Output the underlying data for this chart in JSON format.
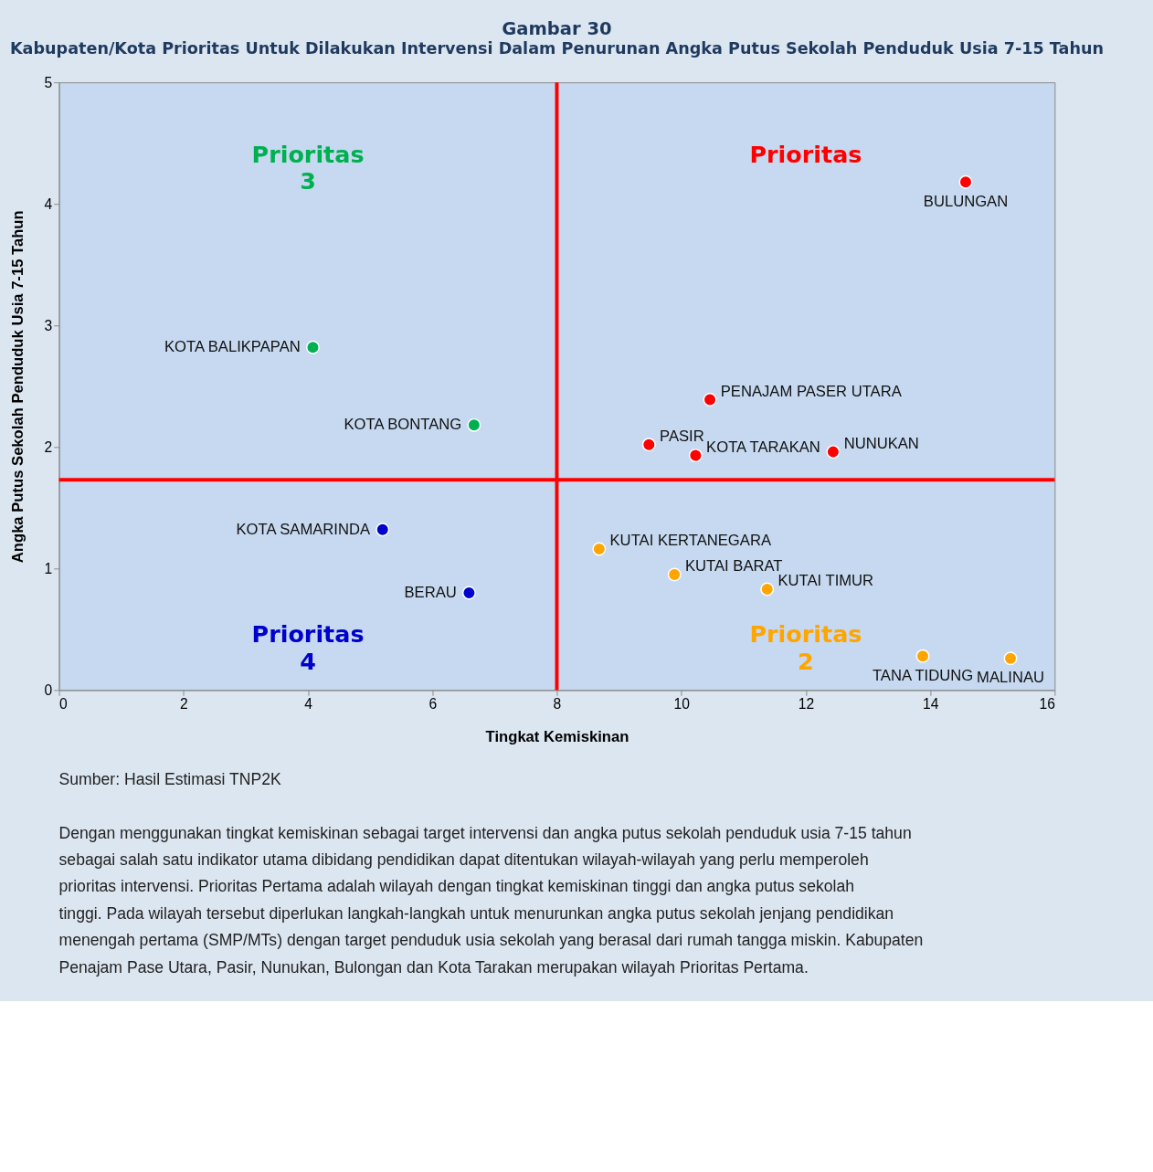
{
  "chart_data": {
    "type": "scatter",
    "title": "Gambar 30",
    "subtitle": "Kabupaten/Kota Prioritas Untuk Dilakukan Intervensi Dalam Penurunan Angka Putus Sekolah Penduduk Usia 7-15 Tahun",
    "xlabel": "Tingkat Kemiskinan",
    "ylabel": "Angka Putus Sekolah Penduduk Usia 7-15 Tahun",
    "xlim": [
      0,
      16
    ],
    "xticks": [
      0,
      2,
      4,
      6,
      8,
      10,
      12,
      14,
      16
    ],
    "ylim": [
      0,
      5
    ],
    "yticks": [
      0,
      1,
      2,
      3,
      4,
      5
    ],
    "grid": false,
    "legend": false,
    "marker": "circle",
    "series": [
      {
        "name": "Prioritas",
        "color": "#ff0000",
        "x": [
          14.57,
          10.46,
          9.48,
          10.23,
          12.44
        ],
        "values": [
          4.18,
          2.39,
          2.02,
          1.93,
          1.96
        ]
      },
      {
        "name": "Prioritas 2",
        "color": "#ffa500",
        "x": [
          8.68,
          9.89,
          11.38,
          13.88,
          15.29
        ],
        "values": [
          1.16,
          0.95,
          0.83,
          0.28,
          0.26
        ]
      },
      {
        "name": "Prioritas 3",
        "color": "#00b050",
        "x": [
          4.08,
          6.67
        ],
        "values": [
          2.82,
          2.18
        ]
      },
      {
        "name": "Prioritas 4",
        "color": "#0000cc",
        "x": [
          5.2,
          6.59
        ],
        "values": [
          1.32,
          0.8
        ]
      }
    ],
    "ref_lines": [
      {
        "axis": "x",
        "value": 8,
        "color": "#ff0000"
      },
      {
        "axis": "y",
        "value": 1.73,
        "color": "#ff0000"
      }
    ],
    "annotations": [
      {
        "text": "BULUNGAN",
        "x": 14.57,
        "y": 4.18
      },
      {
        "text": "PENAJAM PASER UTARA",
        "x": 10.46,
        "y": 2.39
      },
      {
        "text": "PASIR",
        "x": 9.48,
        "y": 2.02
      },
      {
        "text": "KOTA TARAKAN",
        "x": 10.23,
        "y": 1.93
      },
      {
        "text": "NUNUKAN",
        "x": 12.44,
        "y": 1.96
      },
      {
        "text": "KUTAI KERTANEGARA",
        "x": 8.68,
        "y": 1.16
      },
      {
        "text": "KUTAI BARAT",
        "x": 9.89,
        "y": 0.95
      },
      {
        "text": "KUTAI TIMUR",
        "x": 11.38,
        "y": 0.83
      },
      {
        "text": "TANA TIDUNG",
        "x": 13.88,
        "y": 0.28
      },
      {
        "text": "MALINAU",
        "x": 15.29,
        "y": 0.26
      },
      {
        "text": "KOTA BALIKPAPAN",
        "x": 4.08,
        "y": 2.82
      },
      {
        "text": "KOTA BONTANG",
        "x": 6.67,
        "y": 2.18
      },
      {
        "text": "KOTA SAMARINDA",
        "x": 5.2,
        "y": 1.32
      },
      {
        "text": "BERAU",
        "x": 6.59,
        "y": 0.8
      },
      "Sumber: Hasil Estimasi TNP2K",
      "Dengan menggunakan tingkat kemiskinan sebagai target intervensi dan angka putus sekolah penduduk usia 7-15 tahun sebagai salah satu indikator utama dibidang pendidikan dapat ditentukan wilayah-wilayah yang perlu memperoleh prioritas intervensi. Prioritas Pertama adalah wilayah dengan tingkat kemiskinan tinggi dan angka putus sekolah tinggi. Pada wilayah tersebut diperlukan langkah-langkah untuk menurunkan angka putus sekolah jenjang pendidikan menengah pertama (SMP/MTs) dengan target penduduk usia sekolah yang berasal dari rumah tangga miskin. Kabupaten Penajam Pase Utara, Pasir, Nunukan, Bulongan dan Kota Tarakan merupakan wilayah Prioritas Pertama."
    ]
  }
}
